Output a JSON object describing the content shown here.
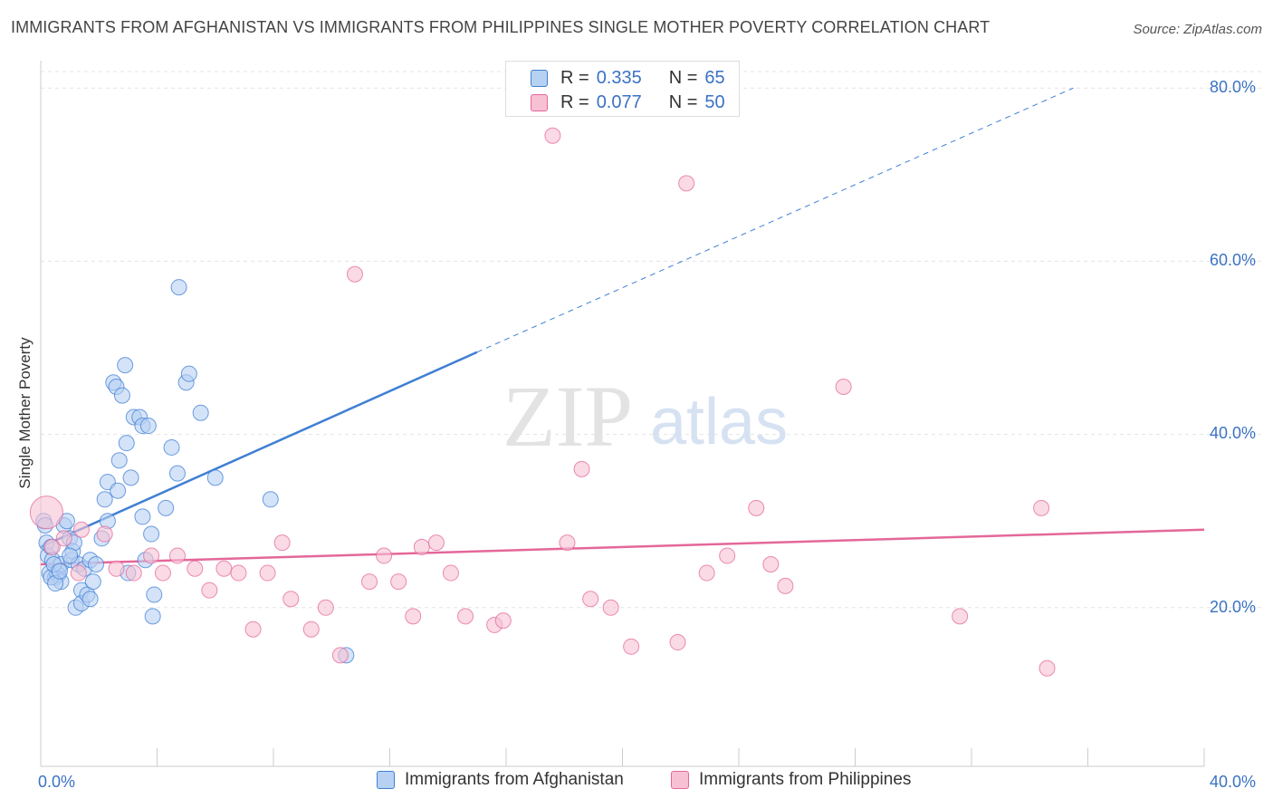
{
  "title": "IMMIGRANTS FROM AFGHANISTAN VS IMMIGRANTS FROM PHILIPPINES SINGLE MOTHER POVERTY CORRELATION CHART",
  "source": "Source: ZipAtlas.com",
  "watermark": {
    "zip": "ZIP",
    "atlas": "atlas"
  },
  "legend_top": {
    "rows": [
      {
        "r_label": "R =",
        "r_value": "0.335",
        "n_label": "N =",
        "n_value": "65"
      },
      {
        "r_label": "R =",
        "r_value": "0.077",
        "n_label": "N =",
        "n_value": "50"
      }
    ]
  },
  "legend_bottom": {
    "series1": "Immigrants from Afghanistan",
    "series2": "Immigrants from Philippines"
  },
  "axes": {
    "x_min_label": "0.0%",
    "x_max_label": "40.0%",
    "y_ticks": [
      "20.0%",
      "40.0%",
      "60.0%",
      "80.0%"
    ],
    "ylabel": "Single Mother Poverty"
  },
  "colors": {
    "blue": "#3f7fd4",
    "blue_fill": "#b7d1f3",
    "pink": "#e4679a",
    "pink_fill": "#f7c1d3",
    "accent_text": "#3a72c4"
  },
  "chart_data": {
    "type": "scatter",
    "xlabel": "",
    "ylabel": "Single Mother Poverty",
    "xlim": [
      0,
      40
    ],
    "ylim": [
      0,
      80
    ],
    "y_ticks": [
      20,
      40,
      60,
      80
    ],
    "x_ticks": [
      0,
      4,
      8,
      12,
      16,
      20,
      24,
      28,
      32,
      36,
      40
    ],
    "grid": "horizontal dashed",
    "series": [
      {
        "name": "Immigrants from Afghanistan",
        "color": "#3f7fd4",
        "R": 0.335,
        "N": 65,
        "trend": {
          "x0": 0,
          "y0": 27.0,
          "x1": 15,
          "y1": 49.5,
          "dashed_to_x": 35.5,
          "dashed_to_y": 80
        },
        "points": [
          [
            0.1,
            30.0
          ],
          [
            0.15,
            29.5
          ],
          [
            0.2,
            27.5
          ],
          [
            0.25,
            26.0
          ],
          [
            0.3,
            24.0
          ],
          [
            0.35,
            27.0
          ],
          [
            0.4,
            25.5
          ],
          [
            0.5,
            23.5
          ],
          [
            0.55,
            24.0
          ],
          [
            0.6,
            23.8
          ],
          [
            0.7,
            25.0
          ],
          [
            0.7,
            23.0
          ],
          [
            0.8,
            29.5
          ],
          [
            0.9,
            30.0
          ],
          [
            1.0,
            28.0
          ],
          [
            1.05,
            25.5
          ],
          [
            1.1,
            26.5
          ],
          [
            1.15,
            27.5
          ],
          [
            1.2,
            20.0
          ],
          [
            1.3,
            25.0
          ],
          [
            1.4,
            22.0
          ],
          [
            1.4,
            20.5
          ],
          [
            1.5,
            24.5
          ],
          [
            1.6,
            21.5
          ],
          [
            1.7,
            21.0
          ],
          [
            1.7,
            25.5
          ],
          [
            1.8,
            23.0
          ],
          [
            1.9,
            25.0
          ],
          [
            2.1,
            28.0
          ],
          [
            2.2,
            32.5
          ],
          [
            2.3,
            34.5
          ],
          [
            2.3,
            30.0
          ],
          [
            2.5,
            46.0
          ],
          [
            2.6,
            45.5
          ],
          [
            2.65,
            33.5
          ],
          [
            2.7,
            37.0
          ],
          [
            2.8,
            44.5
          ],
          [
            2.9,
            48.0
          ],
          [
            2.95,
            39.0
          ],
          [
            3.0,
            24.0
          ],
          [
            3.1,
            35.0
          ],
          [
            3.2,
            42.0
          ],
          [
            3.4,
            42.0
          ],
          [
            3.5,
            41.0
          ],
          [
            3.5,
            30.5
          ],
          [
            3.6,
            25.5
          ],
          [
            3.7,
            41.0
          ],
          [
            3.8,
            28.5
          ],
          [
            3.85,
            19.0
          ],
          [
            3.9,
            21.5
          ],
          [
            4.3,
            31.5
          ],
          [
            4.5,
            38.5
          ],
          [
            4.7,
            35.5
          ],
          [
            4.75,
            57.0
          ],
          [
            5.0,
            46.0
          ],
          [
            5.1,
            47.0
          ],
          [
            5.5,
            42.5
          ],
          [
            6.0,
            35.0
          ],
          [
            7.9,
            32.5
          ],
          [
            10.5,
            14.5
          ],
          [
            0.35,
            23.5
          ],
          [
            0.5,
            22.8
          ],
          [
            1.0,
            26.0
          ],
          [
            0.45,
            25.0
          ],
          [
            0.65,
            24.2
          ]
        ]
      },
      {
        "name": "Immigrants from Philippines",
        "color": "#e4679a",
        "R": 0.077,
        "N": 50,
        "trend": {
          "x0": 0,
          "y0": 25.0,
          "x1": 40,
          "y1": 29.0
        },
        "points": [
          [
            0.2,
            31.0
          ],
          [
            0.4,
            27.0
          ],
          [
            0.8,
            28.0
          ],
          [
            1.3,
            24.0
          ],
          [
            1.4,
            29.0
          ],
          [
            2.2,
            28.5
          ],
          [
            2.6,
            24.5
          ],
          [
            3.2,
            24.0
          ],
          [
            3.8,
            26.0
          ],
          [
            4.2,
            24.0
          ],
          [
            4.7,
            26.0
          ],
          [
            5.3,
            24.5
          ],
          [
            5.8,
            22.0
          ],
          [
            6.3,
            24.5
          ],
          [
            6.8,
            24.0
          ],
          [
            7.3,
            17.5
          ],
          [
            7.8,
            24.0
          ],
          [
            8.3,
            27.5
          ],
          [
            8.6,
            21.0
          ],
          [
            9.3,
            17.5
          ],
          [
            9.8,
            20.0
          ],
          [
            10.3,
            14.5
          ],
          [
            10.8,
            58.5
          ],
          [
            11.3,
            23.0
          ],
          [
            11.8,
            26.0
          ],
          [
            12.3,
            23.0
          ],
          [
            12.8,
            19.0
          ],
          [
            13.1,
            27.0
          ],
          [
            13.6,
            27.5
          ],
          [
            14.1,
            24.0
          ],
          [
            14.6,
            19.0
          ],
          [
            15.6,
            18.0
          ],
          [
            15.9,
            18.5
          ],
          [
            17.6,
            74.5
          ],
          [
            18.1,
            27.5
          ],
          [
            18.6,
            36.0
          ],
          [
            18.9,
            21.0
          ],
          [
            19.6,
            20.0
          ],
          [
            20.3,
            15.5
          ],
          [
            21.9,
            16.0
          ],
          [
            22.2,
            69.0
          ],
          [
            22.9,
            24.0
          ],
          [
            23.6,
            26.0
          ],
          [
            24.6,
            31.5
          ],
          [
            25.1,
            25.0
          ],
          [
            25.6,
            22.5
          ],
          [
            27.6,
            45.5
          ],
          [
            31.6,
            19.0
          ],
          [
            34.4,
            31.5
          ],
          [
            34.6,
            13.0
          ]
        ]
      }
    ]
  }
}
